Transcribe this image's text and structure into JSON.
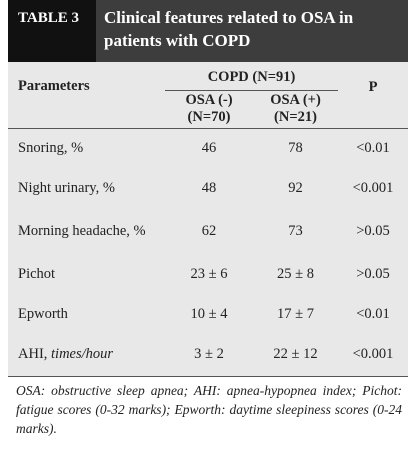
{
  "header": {
    "label": "TABLE 3",
    "title": "Clinical features related to OSA in patients with COPD"
  },
  "table": {
    "param_header": "Parameters",
    "group_header": "COPD (N=91)",
    "columns": [
      [
        "OSA (-)",
        "(N=70)"
      ],
      [
        "OSA (+)",
        "(N=21)"
      ]
    ],
    "p_header": "P",
    "rows": [
      {
        "name": "Snoring, %",
        "cells": [
          "46",
          "78",
          "<0.01"
        ]
      },
      {
        "name": "Night urinary, %",
        "cells": [
          "48",
          "92",
          "<0.001"
        ]
      },
      {
        "name": "Morning headache, %",
        "cells": [
          "62",
          "73",
          ">0.05"
        ]
      },
      {
        "name": "Pichot",
        "cells": [
          "23 ± 6",
          "25 ± 8",
          ">0.05"
        ]
      },
      {
        "name": "Epworth",
        "cells": [
          "10 ± 4",
          "17 ± 7",
          "<0.01"
        ]
      },
      {
        "name": "AHI,",
        "unit": "times/hour",
        "cells": [
          "3 ± 2",
          "22 ± 12",
          "<0.001"
        ]
      }
    ]
  },
  "footnote": "OSA: obstructive sleep apnea; AHI: apnea-hypopnea index; Pichot: fatigue scores (0-32 marks); Epworth: daytime sleepiness scores (0-24 marks)."
}
